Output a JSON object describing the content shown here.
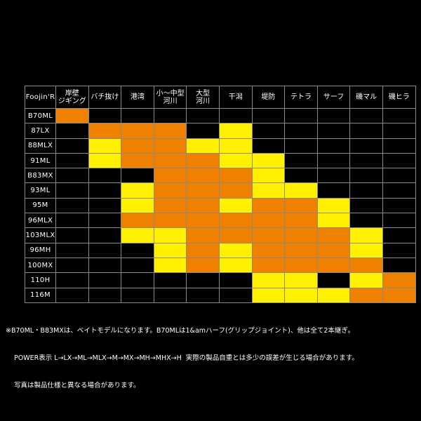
{
  "table": {
    "corner_label": "Foojin'R",
    "columns": [
      "岸壁\nジギング",
      "バチ抜け",
      "港湾",
      "小〜中型\n河川",
      "大型\n河川",
      "干潟",
      "堤防",
      "テトラ",
      "サーフ",
      "磯マル",
      "磯ヒラ"
    ],
    "colors": {
      "O": "#f08000",
      "Y": "#fff000",
      ".": "#000000"
    },
    "rows": [
      {
        "model": "B70ML",
        "cells": "O.........."
      },
      {
        "model": "87LX",
        "cells": ".OOO.Y....."
      },
      {
        "model": "88MLX",
        "cells": ".YOOYY....."
      },
      {
        "model": "91ML",
        "cells": ".YOOOYY...."
      },
      {
        "model": "B83MX",
        "cells": "...OOOY...."
      },
      {
        "model": "93ML",
        "cells": "..YOOOYY..."
      },
      {
        "model": "95M",
        "cells": "..YOOYOOY.."
      },
      {
        "model": "96MLX",
        "cells": "..OOOOOOY.."
      },
      {
        "model": "103MLX",
        "cells": "..YYOOOOOY."
      },
      {
        "model": "96MH",
        "cells": "...YOYOOOY."
      },
      {
        "model": "100MX",
        "cells": "...YOYOOOO."
      },
      {
        "model": "110H",
        "cells": "......YY.YO"
      },
      {
        "model": "116M",
        "cells": "......YYYOO"
      }
    ]
  },
  "notes": {
    "line1": "※B70ML・B83MXは、ベイトモデルになります。B70MLは1&amハーフ(グリップジョイント)、他は全て2本継ぎ。",
    "line2": "POWER表示 L→LX→ML→MLX→M→MX→MH→MHX→H  実際の製品自重とは多少の誤差が生じる場合があります。",
    "line3": "写真は製品仕様と異なる場合があります。"
  }
}
